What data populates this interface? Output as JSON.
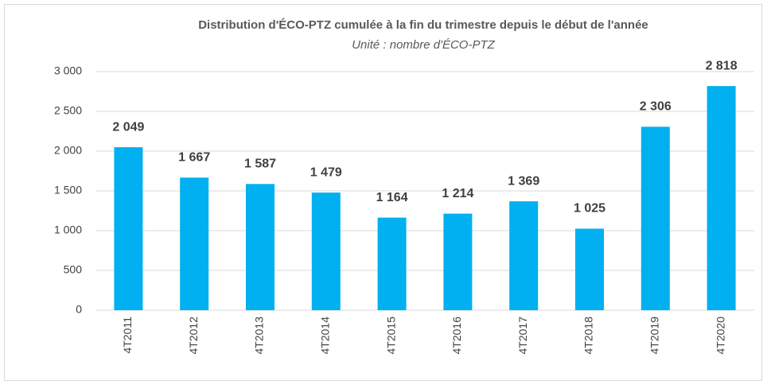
{
  "chart_data": {
    "type": "bar",
    "title": "Distribution  d'ÉCO-PTZ  cumulée  à la fin du trimestre  depuis  le début  de l'année",
    "subtitle": "Unité : nombre d'ÉCO-PTZ",
    "categories": [
      "4T2011",
      "4T2012",
      "4T2013",
      "4T2014",
      "4T2015",
      "4T2016",
      "4T2017",
      "4T2018",
      "4T2019",
      "4T2020"
    ],
    "values": [
      2049,
      1667,
      1587,
      1479,
      1164,
      1214,
      1369,
      1025,
      2306,
      2818
    ],
    "value_labels": [
      "2 049",
      "1 667",
      "1 587",
      "1 479",
      "1 164",
      "1 214",
      "1 369",
      "1 025",
      "2 306",
      "2 818"
    ],
    "color": "#00b0f0",
    "ylim": [
      0,
      3000
    ],
    "yticks": [
      0,
      500,
      {
        "value": 1000,
        "label": "1 000"
      },
      {
        "value": 1500,
        "label": "1 500"
      },
      {
        "value": 2000,
        "label": "2 000"
      },
      {
        "value": 2500,
        "label": "2 500"
      },
      {
        "value": 3000,
        "label": "3 000"
      }
    ],
    "grid": true
  }
}
